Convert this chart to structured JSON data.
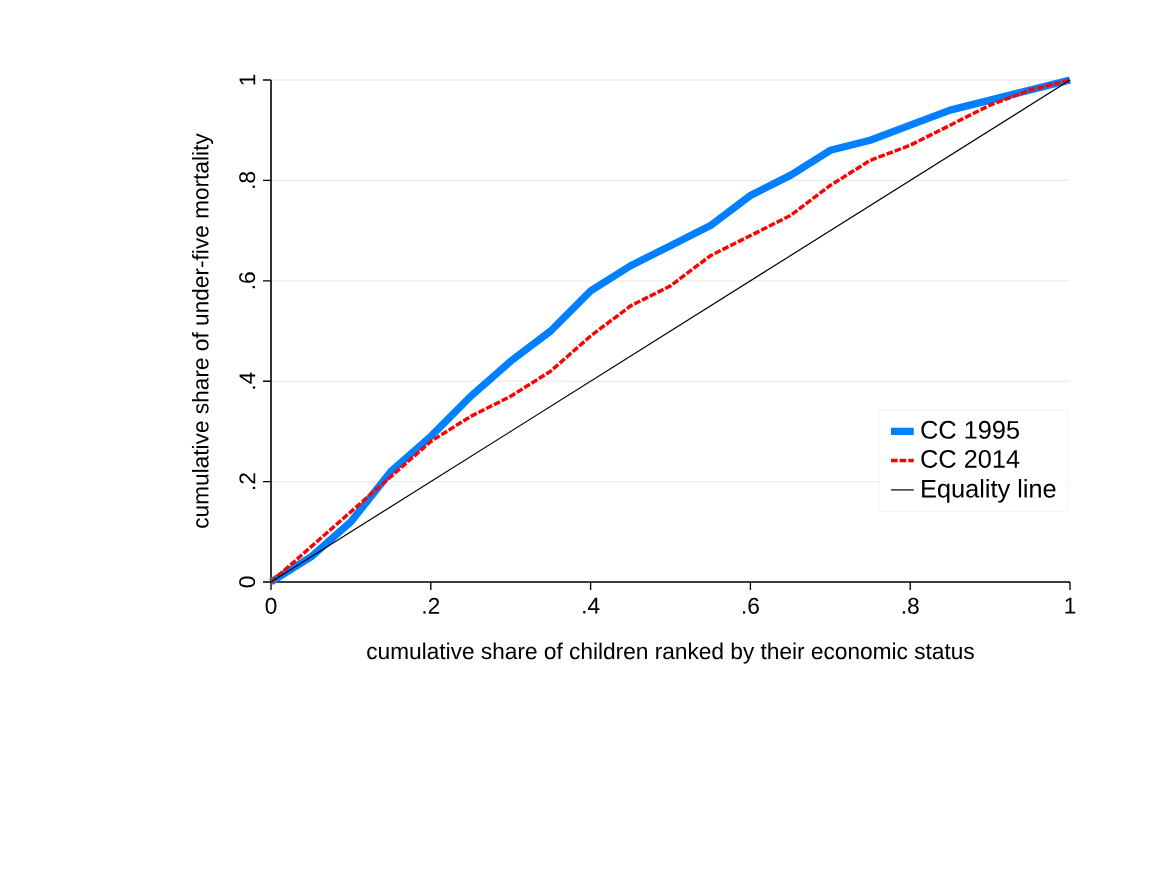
{
  "chart_data": {
    "type": "line",
    "xlabel": "cumulative share of children ranked by their economic status",
    "ylabel": "cumulative share of under-five mortality",
    "x": [
      0,
      0.05,
      0.1,
      0.15,
      0.2,
      0.25,
      0.3,
      0.35,
      0.4,
      0.45,
      0.5,
      0.55,
      0.6,
      0.65,
      0.7,
      0.75,
      0.8,
      0.85,
      0.9,
      0.95,
      1
    ],
    "series": [
      {
        "name": "CC 1995",
        "color": "#0080ff",
        "line_style": "solid",
        "values": [
          0,
          0.05,
          0.12,
          0.22,
          0.29,
          0.37,
          0.44,
          0.5,
          0.58,
          0.63,
          0.67,
          0.71,
          0.77,
          0.81,
          0.86,
          0.88,
          0.91,
          0.94,
          0.96,
          0.98,
          1
        ]
      },
      {
        "name": "CC 2014",
        "color": "#ff0000",
        "line_style": "dashed",
        "values": [
          0,
          0.07,
          0.14,
          0.21,
          0.28,
          0.33,
          0.37,
          0.42,
          0.49,
          0.55,
          0.59,
          0.65,
          0.69,
          0.73,
          0.79,
          0.84,
          0.87,
          0.91,
          0.95,
          0.98,
          1
        ]
      },
      {
        "name": "Equality line",
        "color": "#000000",
        "line_style": "solid",
        "x": [
          0,
          1
        ],
        "values": [
          0,
          1
        ]
      }
    ],
    "xlim": [
      0,
      1
    ],
    "ylim": [
      0,
      1
    ],
    "xticks": [
      0,
      {
        "value": 0.2,
        "label": ".2"
      },
      {
        "value": 0.4,
        "label": ".4"
      },
      {
        "value": 0.6,
        "label": ".6"
      },
      {
        "value": 0.8,
        "label": ".8"
      },
      1
    ],
    "yticks": [
      0,
      {
        "value": 0.2,
        "label": ".2"
      },
      {
        "value": 0.4,
        "label": ".4"
      },
      {
        "value": 0.6,
        "label": ".6"
      },
      {
        "value": 0.8,
        "label": ".8"
      },
      1
    ],
    "grid": "y",
    "legend": "bottom right",
    "marker": "none"
  }
}
